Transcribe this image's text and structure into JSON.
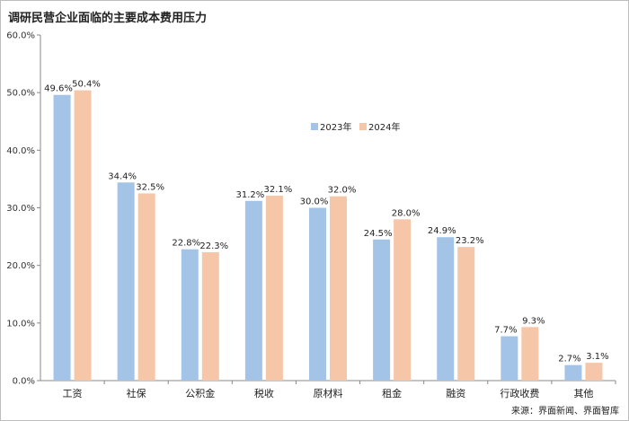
{
  "title": "调研民营企业面临的主要成本费用压力",
  "source": "来源：界面新闻、界面智库",
  "colors": {
    "series_2023": "#a3c4e6",
    "series_2024": "#f6c6a8",
    "axis": "#888888"
  },
  "chart_data": {
    "type": "bar",
    "title": "调研民营企业面临的主要成本费用压力",
    "xlabel": "",
    "ylabel": "",
    "ylim": [
      0,
      60
    ],
    "yticks": [
      "0.0%",
      "10.0%",
      "20.0%",
      "30.0%",
      "40.0%",
      "50.0%",
      "60.0%"
    ],
    "grid": false,
    "legend_position": "upper-center",
    "categories": [
      "工资",
      "社保",
      "公积金",
      "税收",
      "原材料",
      "租金",
      "融资",
      "行政收费",
      "其他"
    ],
    "series": [
      {
        "name": "2023年",
        "values": [
          49.6,
          34.4,
          22.8,
          31.2,
          30.0,
          24.5,
          24.9,
          7.7,
          2.7
        ],
        "labels": [
          "49.6%",
          "34.4%",
          "22.8%",
          "31.2%",
          "30.0%",
          "24.5%",
          "24.9%",
          "7.7%",
          "2.7%"
        ]
      },
      {
        "name": "2024年",
        "values": [
          50.4,
          32.5,
          22.3,
          32.1,
          32.0,
          28.0,
          23.2,
          9.3,
          3.1
        ],
        "labels": [
          "50.4%",
          "32.5%",
          "22.3%",
          "32.1%",
          "32.0%",
          "28.0%",
          "23.2%",
          "9.3%",
          "3.1%"
        ]
      }
    ]
  }
}
